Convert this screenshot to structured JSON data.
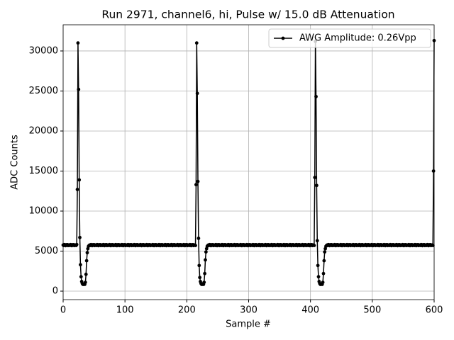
{
  "chart_data": {
    "type": "line",
    "title": "Run 2971, channel6, hi, Pulse w/ 15.0 dB Attenuation",
    "xlabel": "Sample #",
    "ylabel": "ADC Counts",
    "xlim": [
      0,
      600
    ],
    "ylim": [
      -1060,
      33270
    ],
    "xticks": [
      0,
      100,
      200,
      300,
      400,
      500,
      600
    ],
    "yticks": [
      0,
      5000,
      10000,
      15000,
      20000,
      25000,
      30000
    ],
    "grid": true,
    "legend": "upper right",
    "x": [
      0,
      1,
      2,
      3,
      4,
      5,
      6,
      7,
      8,
      9,
      10,
      11,
      12,
      13,
      14,
      15,
      16,
      17,
      18,
      19,
      20,
      21,
      22,
      23,
      24,
      25,
      26,
      27,
      28,
      29,
      30,
      31,
      32,
      33,
      34,
      35,
      36,
      37,
      38,
      39,
      40,
      41,
      42,
      43,
      44,
      45,
      46,
      47,
      48,
      49,
      50,
      51,
      52,
      53,
      54,
      55,
      56,
      57,
      58,
      59,
      60,
      61,
      62,
      63,
      64,
      65,
      66,
      67,
      68,
      69,
      70,
      71,
      72,
      73,
      74,
      75,
      76,
      77,
      78,
      79,
      80,
      81,
      82,
      83,
      84,
      85,
      86,
      87,
      88,
      89,
      90,
      91,
      92,
      93,
      94,
      95,
      96,
      97,
      98,
      99,
      100,
      101,
      102,
      103,
      104,
      105,
      106,
      107,
      108,
      109,
      110,
      111,
      112,
      113,
      114,
      115,
      116,
      117,
      118,
      119,
      120,
      121,
      122,
      123,
      124,
      125,
      126,
      127,
      128,
      129,
      130,
      131,
      132,
      133,
      134,
      135,
      136,
      137,
      138,
      139,
      140,
      141,
      142,
      143,
      144,
      145,
      146,
      147,
      148,
      149,
      150,
      151,
      152,
      153,
      154,
      155,
      156,
      157,
      158,
      159,
      160,
      161,
      162,
      163,
      164,
      165,
      166,
      167,
      168,
      169,
      170,
      171,
      172,
      173,
      174,
      175,
      176,
      177,
      178,
      179,
      180,
      181,
      182,
      183,
      184,
      185,
      186,
      187,
      188,
      189,
      190,
      191,
      192,
      193,
      194,
      195,
      196,
      197,
      198,
      199,
      200,
      201,
      202,
      203,
      204,
      205,
      206,
      207,
      208,
      209,
      210,
      211,
      212,
      213,
      214,
      215,
      216,
      217,
      218,
      219,
      220,
      221,
      222,
      223,
      224,
      225,
      226,
      227,
      228,
      229,
      230,
      231,
      232,
      233,
      234,
      235,
      236,
      237,
      238,
      239,
      240,
      241,
      242,
      243,
      244,
      245,
      246,
      247,
      248,
      249,
      250,
      251,
      252,
      253,
      254,
      255,
      256,
      257,
      258,
      259,
      260,
      261,
      262,
      263,
      264,
      265,
      266,
      267,
      268,
      269,
      270,
      271,
      272,
      273,
      274,
      275,
      276,
      277,
      278,
      279,
      280,
      281,
      282,
      283,
      284,
      285,
      286,
      287,
      288,
      289,
      290,
      291,
      292,
      293,
      294,
      295,
      296,
      297,
      298,
      299,
      300,
      301,
      302,
      303,
      304,
      305,
      306,
      307,
      308,
      309,
      310,
      311,
      312,
      313,
      314,
      315,
      316,
      317,
      318,
      319,
      320,
      321,
      322,
      323,
      324,
      325,
      326,
      327,
      328,
      329,
      330,
      331,
      332,
      333,
      334,
      335,
      336,
      337,
      338,
      339,
      340,
      341,
      342,
      343,
      344,
      345,
      346,
      347,
      348,
      349,
      350,
      351,
      352,
      353,
      354,
      355,
      356,
      357,
      358,
      359,
      360,
      361,
      362,
      363,
      364,
      365,
      366,
      367,
      368,
      369,
      370,
      371,
      372,
      373,
      374,
      375,
      376,
      377,
      378,
      379,
      380,
      381,
      382,
      383,
      384,
      385,
      386,
      387,
      388,
      389,
      390,
      391,
      392,
      393,
      394,
      395,
      396,
      397,
      398,
      399,
      400,
      401,
      402,
      403,
      404,
      405,
      406,
      407,
      408,
      409,
      410,
      411,
      412,
      413,
      414,
      415,
      416,
      417,
      418,
      419,
      420,
      421,
      422,
      423,
      424,
      425,
      426,
      427,
      428,
      429,
      430,
      431,
      432,
      433,
      434,
      435,
      436,
      437,
      438,
      439,
      440,
      441,
      442,
      443,
      444,
      445,
      446,
      447,
      448,
      449,
      450,
      451,
      452,
      453,
      454,
      455,
      456,
      457,
      458,
      459,
      460,
      461,
      462,
      463,
      464,
      465,
      466,
      467,
      468,
      469,
      470,
      471,
      472,
      473,
      474,
      475,
      476,
      477,
      478,
      479,
      480,
      481,
      482,
      483,
      484,
      485,
      486,
      487,
      488,
      489,
      490,
      491,
      492,
      493,
      494,
      495,
      496,
      497,
      498,
      499,
      500,
      501,
      502,
      503,
      504,
      505,
      506,
      507,
      508,
      509,
      510,
      511,
      512,
      513,
      514,
      515,
      516,
      517,
      518,
      519,
      520,
      521,
      522,
      523,
      524,
      525,
      526,
      527,
      528,
      529,
      530,
      531,
      532,
      533,
      534,
      535,
      536,
      537,
      538,
      539,
      540,
      541,
      542,
      543,
      544,
      545,
      546,
      547,
      548,
      549,
      550,
      551,
      552,
      553,
      554,
      555,
      556,
      557,
      558,
      559,
      560,
      561,
      562,
      563,
      564,
      565,
      566,
      567,
      568,
      569,
      570,
      571,
      572,
      573,
      574,
      575,
      576,
      577,
      578,
      579,
      580,
      581,
      582,
      583,
      584,
      585,
      586,
      587,
      588,
      589,
      590,
      591,
      592,
      593,
      594,
      595,
      596,
      597,
      598,
      599,
      600
    ],
    "series": [
      {
        "name": "AWG Amplitude: 0.26Vpp",
        "color": "#000000",
        "values": [
          5760,
          5700,
          5820,
          5740,
          5680,
          5790,
          5730,
          5810,
          5690,
          5750,
          5760,
          5700,
          5820,
          5740,
          5680,
          5790,
          5730,
          5810,
          5690,
          5750,
          5760,
          5700,
          5820,
          12700,
          31000,
          25200,
          13900,
          6700,
          3300,
          1800,
          1200,
          950,
          850,
          850,
          900,
          850,
          1100,
          2100,
          3800,
          4800,
          5300,
          5600,
          5700,
          5760,
          5700,
          5820,
          5740,
          5680,
          5790,
          5730,
          5810,
          5690,
          5750,
          5760,
          5700,
          5820,
          5740,
          5680,
          5790,
          5730,
          5810,
          5690,
          5750,
          5760,
          5700,
          5820,
          5740,
          5680,
          5790,
          5730,
          5810,
          5690,
          5750,
          5760,
          5700,
          5820,
          5740,
          5680,
          5790,
          5730,
          5810,
          5690,
          5750,
          5760,
          5700,
          5820,
          5740,
          5680,
          5790,
          5730,
          5810,
          5690,
          5750,
          5760,
          5700,
          5820,
          5740,
          5680,
          5790,
          5730,
          5810,
          5690,
          5750,
          5760,
          5700,
          5820,
          5740,
          5680,
          5790,
          5730,
          5810,
          5690,
          5750,
          5760,
          5700,
          5820,
          5740,
          5680,
          5790,
          5730,
          5810,
          5690,
          5750,
          5760,
          5700,
          5820,
          5740,
          5680,
          5790,
          5730,
          5810,
          5690,
          5750,
          5760,
          5700,
          5820,
          5740,
          5680,
          5790,
          5730,
          5810,
          5690,
          5750,
          5760,
          5700,
          5820,
          5740,
          5680,
          5790,
          5730,
          5810,
          5690,
          5750,
          5760,
          5700,
          5820,
          5740,
          5680,
          5790,
          5730,
          5810,
          5690,
          5750,
          5760,
          5700,
          5820,
          5740,
          5680,
          5790,
          5730,
          5810,
          5690,
          5750,
          5760,
          5700,
          5820,
          5740,
          5680,
          5790,
          5730,
          5810,
          5690,
          5750,
          5760,
          5700,
          5820,
          5740,
          5680,
          5790,
          5730,
          5810,
          5690,
          5750,
          5760,
          5700,
          5820,
          5740,
          5680,
          5790,
          5730,
          5810,
          5690,
          5750,
          5760,
          5700,
          5820,
          5740,
          5680,
          5790,
          5730,
          5810,
          5690,
          5750,
          5760,
          5700,
          13300,
          31000,
          24700,
          13700,
          6600,
          3200,
          1700,
          1200,
          950,
          850,
          850,
          900,
          850,
          1100,
          2200,
          3900,
          4900,
          5300,
          5600,
          5700,
          5760,
          5700,
          5820,
          5740,
          5680,
          5790,
          5730,
          5810,
          5690,
          5750,
          5760,
          5700,
          5820,
          5740,
          5680,
          5790,
          5730,
          5810,
          5690,
          5750,
          5760,
          5700,
          5820,
          5740,
          5680,
          5790,
          5730,
          5810,
          5690,
          5750,
          5760,
          5700,
          5820,
          5740,
          5680,
          5790,
          5730,
          5810,
          5690,
          5750,
          5760,
          5700,
          5820,
          5740,
          5680,
          5790,
          5730,
          5810,
          5690,
          5750,
          5760,
          5700,
          5820,
          5740,
          5680,
          5790,
          5730,
          5810,
          5690,
          5750,
          5760,
          5700,
          5820,
          5740,
          5680,
          5790,
          5730,
          5810,
          5690,
          5750,
          5760,
          5700,
          5820,
          5740,
          5680,
          5790,
          5730,
          5810,
          5690,
          5750,
          5760,
          5700,
          5820,
          5740,
          5680,
          5790,
          5730,
          5810,
          5690,
          5750,
          5760,
          5700,
          5820,
          5740,
          5680,
          5790,
          5730,
          5810,
          5690,
          5750,
          5760,
          5700,
          5820,
          5740,
          5680,
          5790,
          5730,
          5810,
          5690,
          5750,
          5760,
          5700,
          5820,
          5740,
          5680,
          5790,
          5730,
          5810,
          5690,
          5750,
          5760,
          5700,
          5820,
          5740,
          5680,
          5790,
          5730,
          5810,
          5690,
          5750,
          5760,
          5700,
          5820,
          5740,
          5680,
          5790,
          5730,
          5810,
          5690,
          5750,
          5760,
          5700,
          5820,
          5740,
          5680,
          5790,
          5730,
          5810,
          5690,
          5750,
          5760,
          5700,
          5820,
          5740,
          5680,
          5790,
          5730,
          5810,
          5690,
          5750,
          5760,
          5700,
          5820,
          5740,
          5680,
          5790,
          5730,
          5810,
          5690,
          5750,
          5760,
          5700,
          14200,
          31200,
          24300,
          13200,
          6300,
          3200,
          1800,
          1200,
          950,
          850,
          850,
          900,
          850,
          1100,
          2200,
          3800,
          4900,
          5300,
          5600,
          5700,
          5760,
          5700,
          5820,
          5740,
          5680,
          5790,
          5730,
          5810,
          5690,
          5750,
          5760,
          5700,
          5820,
          5740,
          5680,
          5790,
          5730,
          5810,
          5690,
          5750,
          5760,
          5700,
          5820,
          5740,
          5680,
          5790,
          5730,
          5810,
          5690,
          5750,
          5760,
          5700,
          5820,
          5740,
          5680,
          5790,
          5730,
          5810,
          5690,
          5750,
          5760,
          5700,
          5820,
          5740,
          5680,
          5790,
          5730,
          5810,
          5690,
          5750,
          5760,
          5700,
          5820,
          5740,
          5680,
          5790,
          5730,
          5810,
          5690,
          5750,
          5760,
          5700,
          5820,
          5740,
          5680,
          5790,
          5730,
          5810,
          5690,
          5750,
          5760,
          5700,
          5820,
          5740,
          5680,
          5790,
          5730,
          5810,
          5690,
          5750,
          5760,
          5700,
          5820,
          5740,
          5680,
          5790,
          5730,
          5810,
          5690,
          5750,
          5760,
          5700,
          5820,
          5740,
          5680,
          5790,
          5730,
          5810,
          5690,
          5750,
          5760,
          5700,
          5820,
          5740,
          5680,
          5790,
          5730,
          5810,
          5690,
          5750,
          5760,
          5700,
          5820,
          5740,
          5680,
          5790,
          5730,
          5810,
          5690,
          5750,
          5760,
          5700,
          5820,
          5740,
          5680,
          5790,
          5730,
          5810,
          5690,
          5750,
          5760,
          5700,
          5820,
          5740,
          5680,
          5790,
          5730,
          5810,
          5690,
          5750,
          5760,
          5700,
          5820,
          5740,
          5680,
          5790,
          5730,
          5810,
          5690,
          5750,
          5760,
          5700,
          5820,
          5740,
          5680,
          5790,
          5730,
          5810,
          5690,
          5750,
          5760,
          5700,
          5820,
          5740,
          5680,
          5790,
          5730,
          5810,
          5690,
          5750,
          5760,
          5700,
          15000,
          31300
        ]
      }
    ]
  }
}
